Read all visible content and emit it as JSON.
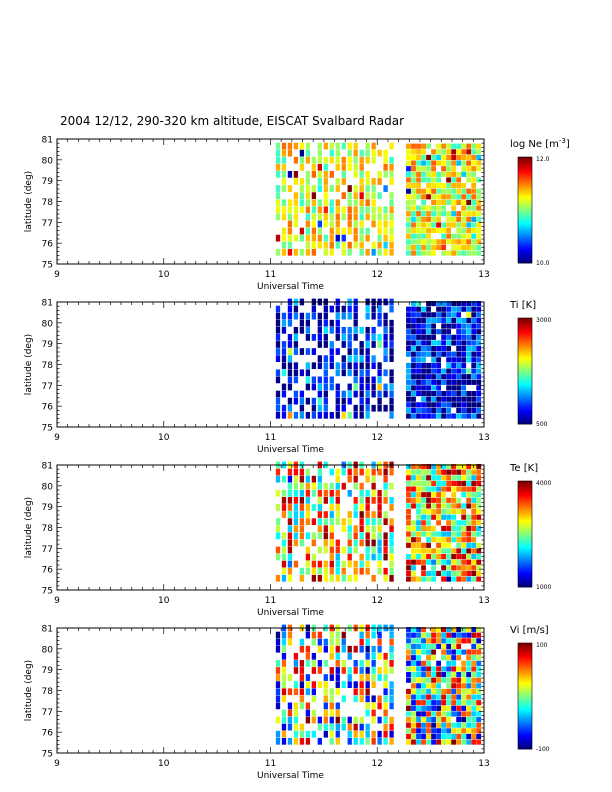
{
  "title": "2004 12/12, 290-320 km altitude, EISCAT Svalbard Radar",
  "chart_data": [
    {
      "type": "heatmap",
      "parameter": "log Ne",
      "colorbar_label": "log Ne [m",
      "colorbar_label_sup": "-3",
      "colorbar_label_suffix": "]",
      "colorbar_min": "10.0",
      "colorbar_max": "12.0",
      "vmin": 10.0,
      "vmax": 12.0,
      "xlabel": "Universal Time",
      "ylabel": "latitude (deg)",
      "xlim": [
        9,
        13
      ],
      "ylim": [
        75,
        81
      ],
      "xticks": [
        "9",
        "10",
        "11",
        "12",
        "13"
      ],
      "yticks": [
        "75",
        "76",
        "77",
        "78",
        "79",
        "80",
        "81"
      ],
      "segments": [
        [
          11.05,
          12.15
        ],
        [
          12.27,
          12.97
        ]
      ],
      "lat_range": [
        75.4,
        80.8
      ],
      "tendency": 0.6,
      "spread": 0.18,
      "seed": 11
    },
    {
      "type": "heatmap",
      "parameter": "Ti",
      "colorbar_label": "Ti [K]",
      "colorbar_min": "500",
      "colorbar_max": "3000",
      "vmin": 500,
      "vmax": 3000,
      "xlabel": "Universal Time",
      "ylabel": "latitude (deg)",
      "xlim": [
        9,
        13
      ],
      "ylim": [
        75,
        81
      ],
      "xticks": [
        "9",
        "10",
        "11",
        "12",
        "13"
      ],
      "yticks": [
        "75",
        "76",
        "77",
        "78",
        "79",
        "80",
        "81"
      ],
      "segments": [
        [
          11.05,
          12.15
        ],
        [
          12.27,
          12.97
        ]
      ],
      "lat_range": [
        75.4,
        80.9
      ],
      "tendency": 0.12,
      "spread": 0.22,
      "seed": 23
    },
    {
      "type": "heatmap",
      "parameter": "Te",
      "colorbar_label": "Te [K]",
      "colorbar_min": "1000",
      "colorbar_max": "4000",
      "vmin": 1000,
      "vmax": 4000,
      "xlabel": "Universal Time",
      "ylabel": "latitude (deg)",
      "xlim": [
        9,
        13
      ],
      "ylim": [
        75,
        81
      ],
      "xticks": [
        "9",
        "10",
        "11",
        "12",
        "13"
      ],
      "yticks": [
        "75",
        "76",
        "77",
        "78",
        "79",
        "80",
        "81"
      ],
      "segments": [
        [
          11.05,
          12.15
        ],
        [
          12.27,
          12.97
        ]
      ],
      "lat_range": [
        75.4,
        80.9
      ],
      "tendency": 0.65,
      "spread": 0.35,
      "seed": 37
    },
    {
      "type": "heatmap",
      "parameter": "Vi",
      "colorbar_label": "Vi [m/s]",
      "colorbar_min": "-100",
      "colorbar_max": "100",
      "vmin": -100,
      "vmax": 100,
      "xlabel": "Universal Time",
      "ylabel": "latitude (deg)",
      "xlim": [
        9,
        13
      ],
      "ylim": [
        75,
        81
      ],
      "xticks": [
        "9",
        "10",
        "11",
        "12",
        "13"
      ],
      "yticks": [
        "75",
        "76",
        "77",
        "78",
        "79",
        "80",
        "81"
      ],
      "segments": [
        [
          11.05,
          12.15
        ],
        [
          12.27,
          12.97
        ]
      ],
      "lat_range": [
        75.4,
        80.9
      ],
      "tendency": 0.5,
      "spread": 0.45,
      "seed": 53
    }
  ]
}
